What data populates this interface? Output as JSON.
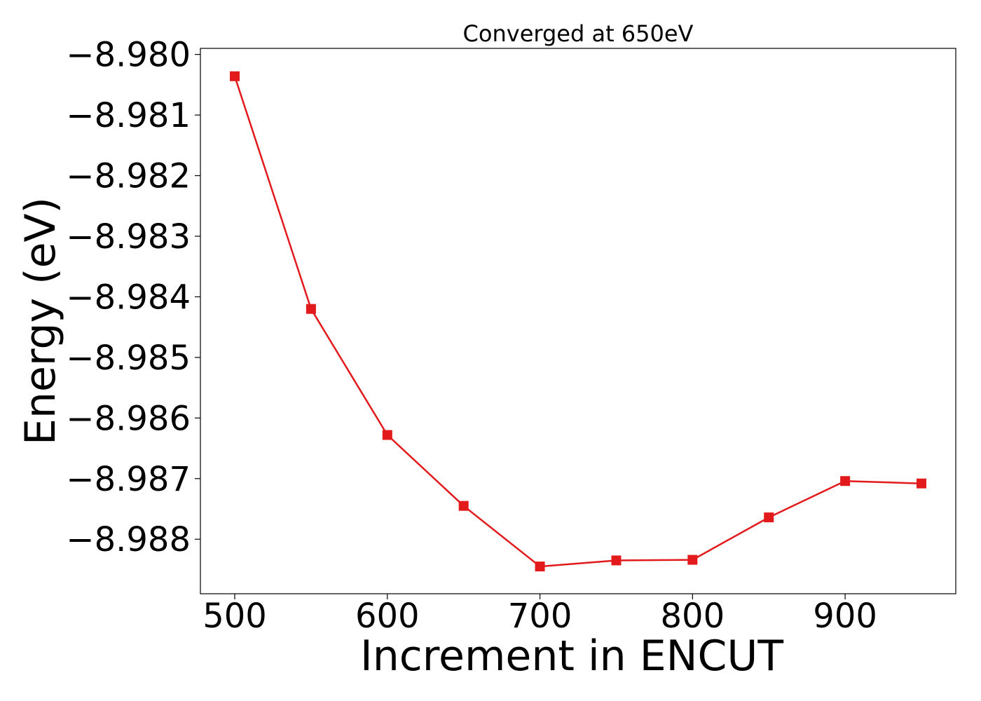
{
  "chart_data": {
    "type": "line",
    "title": "Converged at 650eV",
    "xlabel": "Increment in ENCUT",
    "ylabel": "Energy (eV)",
    "x": [
      500,
      550,
      600,
      650,
      700,
      750,
      800,
      850,
      900,
      950
    ],
    "series": [
      {
        "values": [
          -8.98036,
          -8.9842,
          -8.98628,
          -8.98745,
          -8.98845,
          -8.98835,
          -8.98834,
          -8.98764,
          -8.98704,
          -8.98708
        ],
        "color": "#e31a1c",
        "marker": "square"
      }
    ],
    "xlim": [
      477.5,
      972.5
    ],
    "ylim": [
      -8.9889,
      -8.9799
    ],
    "xticks": [
      500,
      600,
      700,
      800,
      900
    ],
    "xtick_labels": [
      "500",
      "600",
      "700",
      "800",
      "900"
    ],
    "yticks": [
      -8.98,
      -8.981,
      -8.982,
      -8.983,
      -8.984,
      -8.985,
      -8.986,
      -8.987,
      -8.988
    ],
    "ytick_labels": [
      "−8.980",
      "−8.981",
      "−8.982",
      "−8.983",
      "−8.984",
      "−8.985",
      "−8.986",
      "−8.987",
      "−8.988"
    ],
    "grid": false,
    "legend": false
  }
}
